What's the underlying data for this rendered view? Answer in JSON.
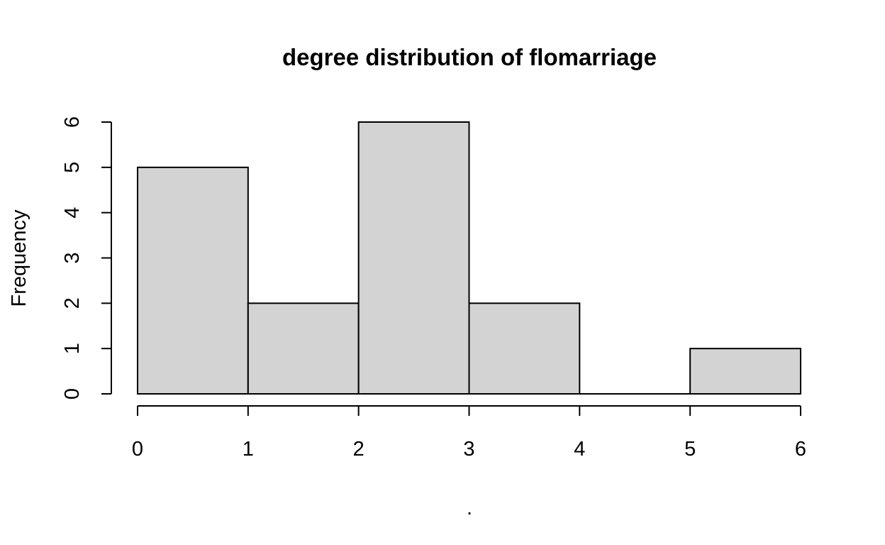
{
  "chart_data": {
    "type": "bar",
    "title": "degree distribution of flomarriage",
    "xlabel": ".",
    "ylabel": "Frequency",
    "bins": [
      {
        "from": 0,
        "to": 1,
        "count": 5
      },
      {
        "from": 1,
        "to": 2,
        "count": 2
      },
      {
        "from": 2,
        "to": 3,
        "count": 6
      },
      {
        "from": 3,
        "to": 4,
        "count": 2
      },
      {
        "from": 4,
        "to": 5,
        "count": 0
      },
      {
        "from": 5,
        "to": 6,
        "count": 1
      }
    ],
    "xlim": [
      0,
      6
    ],
    "ylim": [
      0,
      6
    ],
    "x_ticks": [
      "0",
      "1",
      "2",
      "3",
      "4",
      "5",
      "6"
    ],
    "y_ticks": [
      "0",
      "1",
      "2",
      "3",
      "4",
      "5",
      "6"
    ],
    "bar_color": "#d3d3d3",
    "grid": false,
    "legend": "none"
  }
}
